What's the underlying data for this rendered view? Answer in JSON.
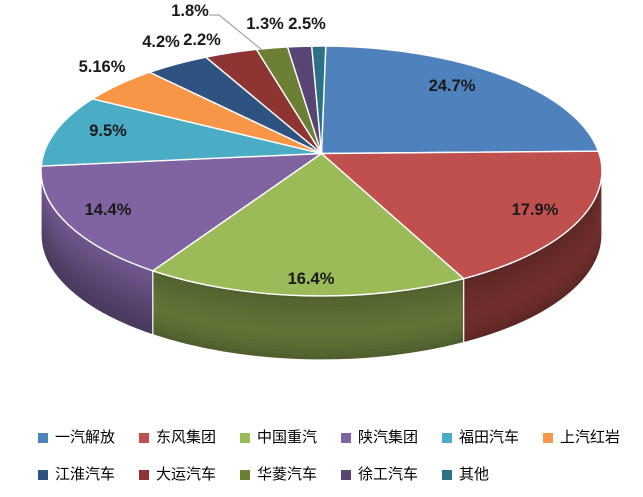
{
  "chart_data": {
    "type": "pie",
    "style": "3d",
    "title": "",
    "legend_position": "bottom",
    "slices": [
      {
        "label": "一汽解放",
        "value": 24.7,
        "display": "24.7%",
        "color": "#4F81BD"
      },
      {
        "label": "东风集团",
        "value": 17.9,
        "display": "17.9%",
        "color": "#C0504D"
      },
      {
        "label": "中国重汽",
        "value": 16.4,
        "display": "16.4%",
        "color": "#9BBB59"
      },
      {
        "label": "陕汽集团",
        "value": 14.4,
        "display": "14.4%",
        "color": "#8064A2"
      },
      {
        "label": "福田汽车",
        "value": 9.5,
        "display": "9.5%",
        "color": "#4BACC6"
      },
      {
        "label": "上汽红岩",
        "value": 5.16,
        "display": "5.16%",
        "color": "#F79646"
      },
      {
        "label": "江淮汽车",
        "value": 4.2,
        "display": "4.2%",
        "color": "#2F5380"
      },
      {
        "label": "大运汽车",
        "value": 2.2,
        "display": "2.2%",
        "color": "#8E3533"
      },
      {
        "label": "华菱汽车",
        "value": 1.8,
        "display": "1.8%",
        "color": "#6B8034"
      },
      {
        "label": "徐工汽车",
        "value": 1.3,
        "display": "1.3%",
        "color": "#584574"
      },
      {
        "label": "其他",
        "value": 2.5,
        "display": "2.5%",
        "color": "#2C7286"
      }
    ]
  }
}
